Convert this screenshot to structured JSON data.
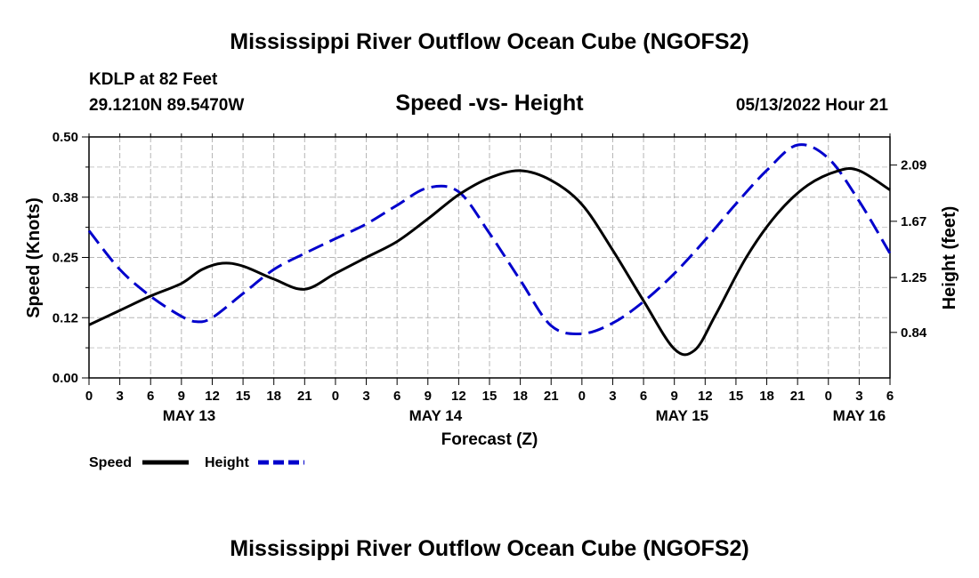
{
  "page": {
    "title": "Mississippi River Outflow Ocean Cube (NGOFS2)",
    "footer_title": "Mississippi River Outflow Ocean Cube (NGOFS2)"
  },
  "chart_data": {
    "type": "line",
    "title": "Speed -vs- Height",
    "station": "KDLP at 82 Feet",
    "location": "29.1210N  89.5470W",
    "timestamp": "05/13/2022 Hour 21",
    "xlabel": "Forecast (Z)",
    "ylabel": "Speed (Knots)",
    "y2label": "Height (feet)",
    "xlim": [
      0,
      78
    ],
    "ylim": [
      0,
      0.5
    ],
    "y2lim": [
      0.5,
      2.3
    ],
    "grid": true,
    "x_tick_labels": [
      "0",
      "3",
      "6",
      "9",
      "12",
      "15",
      "18",
      "21",
      "0",
      "3",
      "6",
      "9",
      "12",
      "15",
      "18",
      "21",
      "0",
      "3",
      "6",
      "9",
      "12",
      "15",
      "18",
      "21",
      "0",
      "3",
      "6"
    ],
    "day_labels": [
      {
        "x": 9.75,
        "label": "MAY 13"
      },
      {
        "x": 33.75,
        "label": "MAY 14"
      },
      {
        "x": 57.75,
        "label": "MAY 15"
      },
      {
        "x": 75,
        "label": "MAY 16"
      }
    ],
    "y_ticks": [
      {
        "value": 0,
        "label": "0.00"
      },
      {
        "value": 0.125,
        "label": "0.12"
      },
      {
        "value": 0.25,
        "label": "0.25"
      },
      {
        "value": 0.375,
        "label": "0.38"
      },
      {
        "value": 0.5,
        "label": "0.50"
      }
    ],
    "y2_ticks": [
      {
        "value": 0.84,
        "label": "0.84"
      },
      {
        "value": 1.25,
        "label": "1.25"
      },
      {
        "value": 1.67,
        "label": "1.67"
      },
      {
        "value": 2.09,
        "label": "2.09"
      }
    ],
    "series": [
      {
        "name": "Speed",
        "axis": "left",
        "color": "#000000",
        "dash": "solid",
        "x": [
          0,
          3,
          6,
          9,
          11,
          13,
          15,
          18,
          21,
          24,
          27,
          30,
          33,
          36,
          39,
          42,
          45,
          48,
          51,
          54,
          57,
          59,
          61,
          64,
          67,
          70,
          73,
          75,
          78
        ],
        "y": [
          0.11,
          0.14,
          0.17,
          0.196,
          0.225,
          0.238,
          0.232,
          0.205,
          0.184,
          0.217,
          0.25,
          0.283,
          0.33,
          0.38,
          0.415,
          0.43,
          0.41,
          0.36,
          0.265,
          0.16,
          0.06,
          0.058,
          0.13,
          0.25,
          0.34,
          0.4,
          0.43,
          0.43,
          0.39
        ]
      },
      {
        "name": "Height",
        "axis": "right",
        "color": "#0000cc",
        "dash": "dashed",
        "x": [
          0,
          3,
          6,
          9,
          10.5,
          12,
          15,
          18,
          21,
          24,
          27,
          30,
          33,
          36,
          39,
          42,
          45,
          48,
          51,
          54,
          57,
          60,
          63,
          66,
          69,
          72,
          75,
          78
        ],
        "y": [
          1.6,
          1.31,
          1.11,
          0.96,
          0.92,
          0.95,
          1.13,
          1.31,
          1.43,
          1.54,
          1.65,
          1.79,
          1.92,
          1.89,
          1.58,
          1.23,
          0.89,
          0.83,
          0.91,
          1.07,
          1.28,
          1.53,
          1.8,
          2.05,
          2.24,
          2.14,
          1.82,
          1.43
        ]
      }
    ]
  },
  "legend": [
    {
      "label": "Speed",
      "color": "#000000",
      "dash": "solid"
    },
    {
      "label": "Height",
      "color": "#0000cc",
      "dash": "dashed"
    }
  ]
}
